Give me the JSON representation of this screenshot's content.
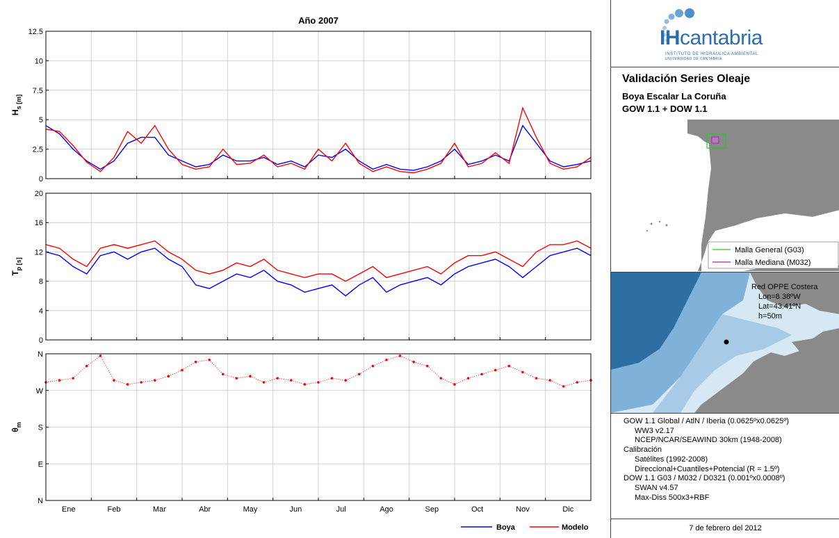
{
  "chart_data": [
    {
      "type": "line",
      "title": "Año 2007",
      "ylabel": "H_s [m]",
      "ylim": [
        0,
        12.5
      ],
      "yticks": [
        0,
        2.5,
        5,
        7.5,
        10,
        12.5
      ],
      "ytick_labels": [
        "0",
        "2.5",
        "5",
        "7.5",
        "10",
        "12.5"
      ],
      "grid": true,
      "x_unit": "month",
      "series": [
        {
          "name": "Boya",
          "color": "#0000ff",
          "x": [
            0,
            0.3,
            0.6,
            0.9,
            1.2,
            1.5,
            1.8,
            2.1,
            2.4,
            2.7,
            3.0,
            3.3,
            3.6,
            3.9,
            4.2,
            4.5,
            4.8,
            5.1,
            5.4,
            5.7,
            6.0,
            6.3,
            6.6,
            6.9,
            7.2,
            7.5,
            7.8,
            8.1,
            8.4,
            8.7,
            9.0,
            9.3,
            9.6,
            9.9,
            10.2,
            10.5,
            10.8,
            11.1,
            11.4,
            11.7,
            12.0
          ],
          "y": [
            4.5,
            3.8,
            2.5,
            1.5,
            0.8,
            1.5,
            3.0,
            3.5,
            3.5,
            2.0,
            1.5,
            1.0,
            1.2,
            2.0,
            1.5,
            1.5,
            1.8,
            1.2,
            1.5,
            1.0,
            2.0,
            1.8,
            2.5,
            1.5,
            0.8,
            1.2,
            0.8,
            0.7,
            1.0,
            1.5,
            2.5,
            1.2,
            1.5,
            2.0,
            1.5,
            4.5,
            3.0,
            1.5,
            1.0,
            1.2,
            1.5
          ]
        },
        {
          "name": "Modelo",
          "color": "#ff0000",
          "x": [
            0,
            0.3,
            0.6,
            0.9,
            1.2,
            1.5,
            1.8,
            2.1,
            2.4,
            2.7,
            3.0,
            3.3,
            3.6,
            3.9,
            4.2,
            4.5,
            4.8,
            5.1,
            5.4,
            5.7,
            6.0,
            6.3,
            6.6,
            6.9,
            7.2,
            7.5,
            7.8,
            8.1,
            8.4,
            8.7,
            9.0,
            9.3,
            9.6,
            9.9,
            10.2,
            10.5,
            10.8,
            11.1,
            11.4,
            11.7,
            12.0
          ],
          "y": [
            4.2,
            4.0,
            2.8,
            1.4,
            0.6,
            1.8,
            4.0,
            3.0,
            4.5,
            2.5,
            1.2,
            0.8,
            1.0,
            2.5,
            1.2,
            1.3,
            2.0,
            1.0,
            1.3,
            0.8,
            2.5,
            1.5,
            3.0,
            1.3,
            0.6,
            1.0,
            0.6,
            0.5,
            0.8,
            1.3,
            3.0,
            1.0,
            1.3,
            2.2,
            1.3,
            6.0,
            3.5,
            1.3,
            0.8,
            1.0,
            1.8
          ]
        }
      ]
    },
    {
      "type": "line",
      "ylabel": "T_p [s]",
      "ylim": [
        0,
        20
      ],
      "yticks": [
        0,
        4,
        8,
        12,
        16,
        20
      ],
      "ytick_labels": [
        "0",
        "4",
        "8",
        "12",
        "16",
        "20"
      ],
      "grid": true,
      "x_unit": "month",
      "series": [
        {
          "name": "Boya",
          "color": "#0000ff",
          "x": [
            0,
            0.3,
            0.6,
            0.9,
            1.2,
            1.5,
            1.8,
            2.1,
            2.4,
            2.7,
            3.0,
            3.3,
            3.6,
            3.9,
            4.2,
            4.5,
            4.8,
            5.1,
            5.4,
            5.7,
            6.0,
            6.3,
            6.6,
            6.9,
            7.2,
            7.5,
            7.8,
            8.1,
            8.4,
            8.7,
            9.0,
            9.3,
            9.6,
            9.9,
            10.2,
            10.5,
            10.8,
            11.1,
            11.4,
            11.7,
            12.0
          ],
          "y": [
            12.0,
            11.5,
            10.0,
            9.0,
            11.5,
            12.0,
            11.0,
            12.0,
            12.5,
            11.0,
            10.0,
            7.5,
            7.0,
            8.0,
            9.0,
            8.5,
            9.5,
            8.0,
            7.5,
            6.5,
            7.0,
            7.5,
            6.0,
            7.5,
            8.5,
            6.5,
            7.5,
            8.0,
            8.5,
            7.5,
            9.0,
            10.0,
            10.5,
            11.0,
            10.0,
            8.5,
            10.0,
            11.5,
            12.0,
            12.5,
            11.5
          ]
        },
        {
          "name": "Modelo",
          "color": "#ff0000",
          "x": [
            0,
            0.3,
            0.6,
            0.9,
            1.2,
            1.5,
            1.8,
            2.1,
            2.4,
            2.7,
            3.0,
            3.3,
            3.6,
            3.9,
            4.2,
            4.5,
            4.8,
            5.1,
            5.4,
            5.7,
            6.0,
            6.3,
            6.6,
            6.9,
            7.2,
            7.5,
            7.8,
            8.1,
            8.4,
            8.7,
            9.0,
            9.3,
            9.6,
            9.9,
            10.2,
            10.5,
            10.8,
            11.1,
            11.4,
            11.7,
            12.0
          ],
          "y": [
            13.0,
            12.5,
            11.0,
            10.0,
            12.5,
            13.0,
            12.5,
            13.0,
            13.5,
            12.0,
            11.0,
            9.5,
            9.0,
            9.5,
            10.5,
            10.0,
            11.0,
            9.5,
            9.0,
            8.5,
            9.0,
            9.0,
            8.0,
            9.0,
            10.0,
            8.5,
            9.0,
            9.5,
            10.0,
            9.0,
            10.5,
            11.5,
            11.5,
            12.0,
            11.0,
            10.0,
            12.0,
            13.0,
            13.0,
            13.5,
            12.5
          ]
        }
      ]
    },
    {
      "type": "scatter",
      "ylabel": "θ_m",
      "ylim": [
        0,
        360
      ],
      "yticks": [
        0,
        90,
        180,
        270,
        360
      ],
      "ytick_labels": [
        "N",
        "E",
        "S",
        "W",
        "N"
      ],
      "grid": true,
      "x_unit": "month",
      "x_tick_labels": [
        "Ene",
        "Feb",
        "Mar",
        "Abr",
        "May",
        "Jun",
        "Jul",
        "Ago",
        "Sep",
        "Oct",
        "Nov",
        "Dic"
      ],
      "series": [
        {
          "name": "Modelo",
          "color": "#ff0000",
          "x": [
            0,
            0.3,
            0.6,
            0.9,
            1.2,
            1.5,
            1.8,
            2.1,
            2.4,
            2.7,
            3.0,
            3.3,
            3.6,
            3.9,
            4.2,
            4.5,
            4.8,
            5.1,
            5.4,
            5.7,
            6.0,
            6.3,
            6.6,
            6.9,
            7.2,
            7.5,
            7.8,
            8.1,
            8.4,
            8.7,
            9.0,
            9.3,
            9.6,
            9.9,
            10.2,
            10.5,
            10.8,
            11.1,
            11.4,
            11.7,
            12.0
          ],
          "y": [
            290,
            295,
            300,
            330,
            355,
            295,
            285,
            290,
            295,
            305,
            320,
            340,
            345,
            310,
            300,
            305,
            290,
            300,
            295,
            285,
            290,
            300,
            295,
            310,
            330,
            345,
            355,
            340,
            330,
            300,
            285,
            300,
            310,
            320,
            330,
            315,
            300,
            295,
            280,
            290,
            295
          ]
        }
      ]
    }
  ],
  "legend": {
    "boya": "Boya",
    "modelo": "Modelo"
  },
  "sidebar": {
    "logo_brand_a": "IH",
    "logo_brand_b": "cantabria",
    "logo_sub1": "INSTITUTO DE HIDRÁULICA AMBIENTAL",
    "logo_sub2": "UNIVERSIDAD DE CANTABRIA",
    "title": "Validación Series Oleaje",
    "buoy": "Boya Escalar La Coruña",
    "model": "GOW 1.1  +  DOW 1.1",
    "map_legend_general": "Malla General (G03)",
    "map_legend_mediana": "Malla Mediana (M032)",
    "station_net": "Red OPPE Costera",
    "station_lon": "Lon=8.38ºW",
    "station_lat": "Lat=43.41ºN",
    "station_depth": "h=50m",
    "meta": [
      {
        "text": "GOW 1.1   Global / AtlN / Iberia (0.0625ºx0.0625º)",
        "indent": false
      },
      {
        "text": "WW3 v2.17",
        "indent": true
      },
      {
        "text": "NCEP/NCAR/SEAWIND 30km (1948-2008)",
        "indent": true
      },
      {
        "text": "Calibración",
        "indent": false
      },
      {
        "text": "Satélites (1992-2008)",
        "indent": true
      },
      {
        "text": "Direccional+Cuantiles+Potencial (R = 1.5º)",
        "indent": true
      },
      {
        "text": "DOW 1.1   G03 / M032 / D0321 (0.001ºx0.0008º)",
        "indent": false
      },
      {
        "text": "SWAN v4.57",
        "indent": true
      },
      {
        "text": "Max-Diss 500x3+RBF",
        "indent": true
      }
    ],
    "date": "7 de febrero del 2012"
  },
  "colors": {
    "boya": "#0000ff",
    "modelo": "#ff0000",
    "brand": "#2b6fb0",
    "land": "#8a8a8a",
    "sea_light": "#bcd8ea",
    "sea_dark": "#2f6ea3"
  }
}
